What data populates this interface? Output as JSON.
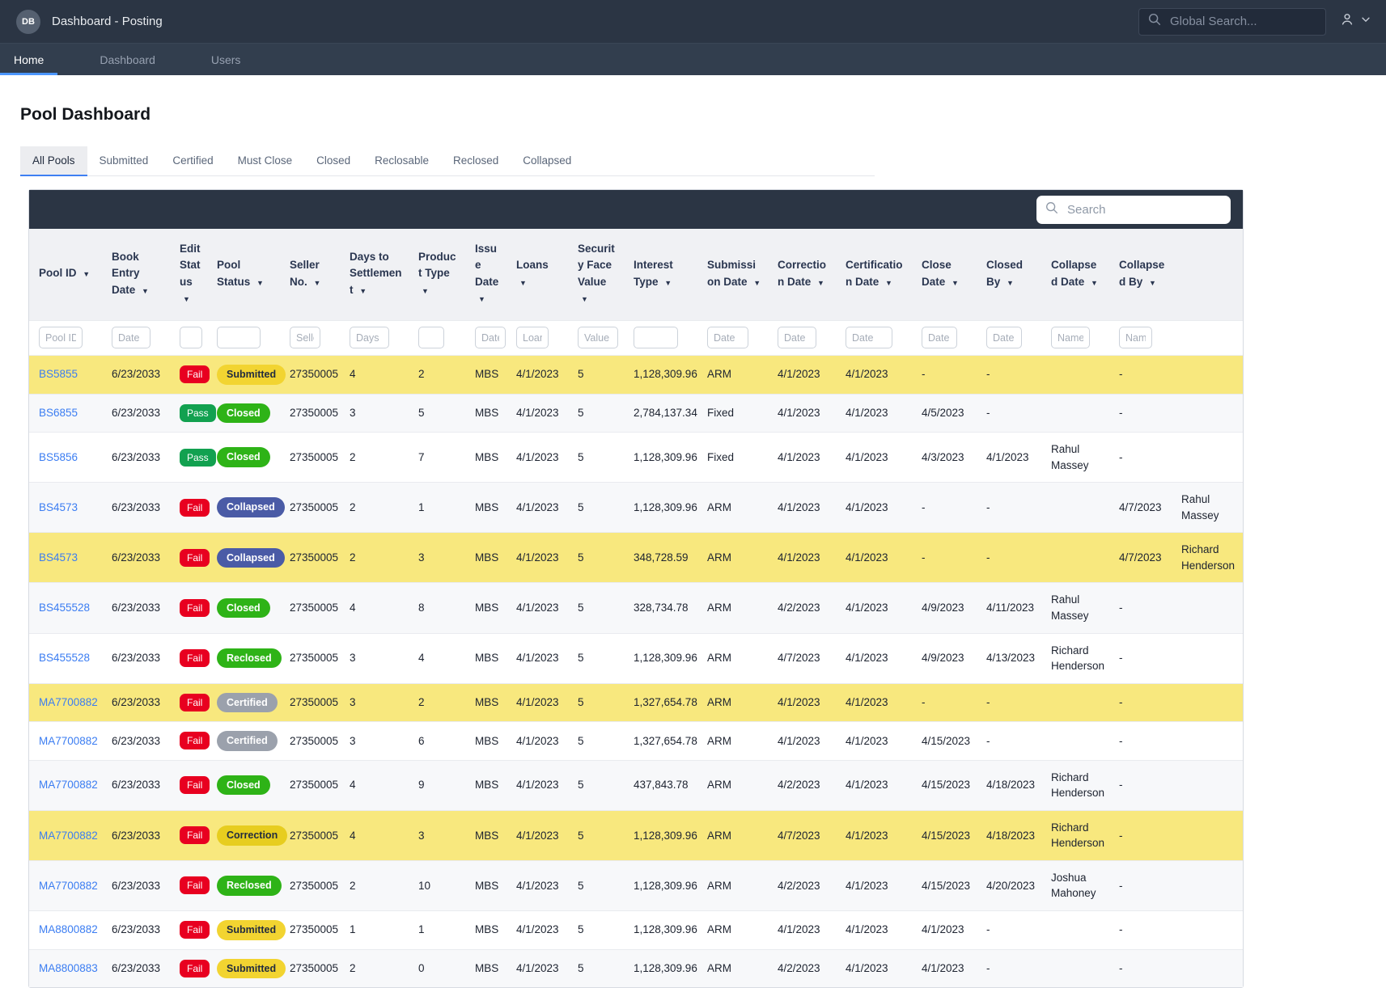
{
  "topbar": {
    "logo": "DB",
    "title": "Dashboard - Posting",
    "global_search_placeholder": "Global Search..."
  },
  "nav": {
    "items": [
      {
        "label": "Home",
        "active": true
      },
      {
        "label": "Dashboard",
        "active": false
      },
      {
        "label": "Users",
        "active": false
      }
    ]
  },
  "page": {
    "title": "Pool Dashboard"
  },
  "tabs": {
    "active": "All Pools",
    "items": [
      "All Pools",
      "Submitted",
      "Certified",
      "Must Close",
      "Closed",
      "Reclosable",
      "Reclosed",
      "Collapsed"
    ]
  },
  "table": {
    "search_placeholder": "Search",
    "columns": [
      {
        "key": "pool_id",
        "label": "Pool ID",
        "sortable": true,
        "filter_placeholder": "Pool ID"
      },
      {
        "key": "book_entry_date",
        "label": "Book Entry Date",
        "sortable": true,
        "filter_placeholder": "Date"
      },
      {
        "key": "edit_status",
        "label": "Edit Status",
        "sortable": true,
        "filter_placeholder": ""
      },
      {
        "key": "pool_status",
        "label": "Pool Status",
        "sortable": true,
        "filter_placeholder": ""
      },
      {
        "key": "seller_no",
        "label": "Seller No.",
        "sortable": true,
        "filter_placeholder": "Seller No."
      },
      {
        "key": "days_to_settlement",
        "label": "Days to Settlement",
        "sortable": true,
        "filter_placeholder": "Days"
      },
      {
        "key": "product_type",
        "label": "Product Type",
        "sortable": true,
        "filter_placeholder": ""
      },
      {
        "key": "issue_date",
        "label": "Issue Date",
        "sortable": true,
        "filter_placeholder": "Date"
      },
      {
        "key": "loans",
        "label": "Loans",
        "sortable": true,
        "filter_placeholder": "Loans"
      },
      {
        "key": "security_face_value",
        "label": "Security Face Value",
        "sortable": true,
        "filter_placeholder": "Value"
      },
      {
        "key": "interest_type",
        "label": "Interest Type",
        "sortable": true,
        "filter_placeholder": ""
      },
      {
        "key": "submission_date",
        "label": "Submission Date",
        "sortable": true,
        "filter_placeholder": "Date"
      },
      {
        "key": "correction_date",
        "label": "Correction Date",
        "sortable": true,
        "filter_placeholder": "Date"
      },
      {
        "key": "certification_date",
        "label": "Certification Date",
        "sortable": true,
        "filter_placeholder": "Date"
      },
      {
        "key": "close_date",
        "label": "Close Date",
        "sortable": true,
        "filter_placeholder": "Date"
      },
      {
        "key": "closed_by",
        "label": "Closed By",
        "sortable": true,
        "filter_placeholder": "Date"
      },
      {
        "key": "collapsed_date",
        "label": "Collapsed Date",
        "sortable": true,
        "filter_placeholder": "Name"
      },
      {
        "key": "collapsed_by",
        "label": "Collapsed By",
        "sortable": true,
        "filter_placeholder": "Name"
      },
      {
        "key": "overflow",
        "label": "",
        "sortable": false,
        "filter_placeholder": null
      }
    ],
    "rows": [
      {
        "highlight": true,
        "cells": [
          "BS5855",
          "6/23/2033",
          "Fail",
          "Submitted",
          "27350005",
          "4",
          "2",
          "MBS",
          "4/1/2023",
          "5",
          "1,128,309.96",
          "ARM",
          "4/1/2023",
          "4/1/2023",
          "-",
          "-",
          "",
          "-",
          ""
        ]
      },
      {
        "highlight": false,
        "cells": [
          "BS6855",
          "6/23/2033",
          "Pass",
          "Closed",
          "27350005",
          "3",
          "5",
          "MBS",
          "4/1/2023",
          "5",
          "2,784,137.34",
          "Fixed",
          "4/1/2023",
          "4/1/2023",
          "4/5/2023",
          "-",
          "",
          "-",
          ""
        ]
      },
      {
        "highlight": false,
        "cells": [
          "BS5856",
          "6/23/2033",
          "Pass",
          "Closed",
          "27350005",
          "2",
          "7",
          "MBS",
          "4/1/2023",
          "5",
          "1,128,309.96",
          "Fixed",
          "4/1/2023",
          "4/1/2023",
          "4/3/2023",
          "4/1/2023",
          "Rahul Massey",
          "-",
          ""
        ]
      },
      {
        "highlight": false,
        "cells": [
          "BS4573",
          "6/23/2033",
          "Fail",
          "Collapsed",
          "27350005",
          "2",
          "1",
          "MBS",
          "4/1/2023",
          "5",
          "1,128,309.96",
          "ARM",
          "4/1/2023",
          "4/1/2023",
          "-",
          "-",
          "",
          "4/7/2023",
          "Rahul Massey"
        ]
      },
      {
        "highlight": true,
        "cells": [
          "BS4573",
          "6/23/2033",
          "Fail",
          "Collapsed",
          "27350005",
          "2",
          "3",
          "MBS",
          "4/1/2023",
          "5",
          "348,728.59",
          "ARM",
          "4/1/2023",
          "4/1/2023",
          "-",
          "-",
          "",
          "4/7/2023",
          "Richard Henderson"
        ]
      },
      {
        "highlight": false,
        "cells": [
          "BS455528",
          "6/23/2033",
          "Fail",
          "Closed",
          "27350005",
          "4",
          "8",
          "MBS",
          "4/1/2023",
          "5",
          "328,734.78",
          "ARM",
          "4/2/2023",
          "4/1/2023",
          "4/9/2023",
          "4/11/2023",
          "Rahul Massey",
          "-",
          ""
        ]
      },
      {
        "highlight": false,
        "cells": [
          "BS455528",
          "6/23/2033",
          "Fail",
          "Reclosed",
          "27350005",
          "3",
          "4",
          "MBS",
          "4/1/2023",
          "5",
          "1,128,309.96",
          "ARM",
          "4/7/2023",
          "4/1/2023",
          "4/9/2023",
          "4/13/2023",
          "Richard Henderson",
          "-",
          ""
        ]
      },
      {
        "highlight": true,
        "cells": [
          "MA7700882",
          "6/23/2033",
          "Fail",
          "Certified",
          "27350005",
          "3",
          "2",
          "MBS",
          "4/1/2023",
          "5",
          "1,327,654.78",
          "ARM",
          "4/1/2023",
          "4/1/2023",
          "-",
          "-",
          "",
          "-",
          ""
        ]
      },
      {
        "highlight": false,
        "cells": [
          "MA7700882",
          "6/23/2033",
          "Fail",
          "Certified",
          "27350005",
          "3",
          "6",
          "MBS",
          "4/1/2023",
          "5",
          "1,327,654.78",
          "ARM",
          "4/1/2023",
          "4/1/2023",
          "4/15/2023",
          "-",
          "",
          "-",
          ""
        ]
      },
      {
        "highlight": false,
        "cells": [
          "MA7700882",
          "6/23/2033",
          "Fail",
          "Closed",
          "27350005",
          "4",
          "9",
          "MBS",
          "4/1/2023",
          "5",
          "437,843.78",
          "ARM",
          "4/2/2023",
          "4/1/2023",
          "4/15/2023",
          "4/18/2023",
          "Richard Henderson",
          "-",
          ""
        ]
      },
      {
        "highlight": true,
        "cells": [
          "MA7700882",
          "6/23/2033",
          "Fail",
          "Correction",
          "27350005",
          "4",
          "3",
          "MBS",
          "4/1/2023",
          "5",
          "1,128,309.96",
          "ARM",
          "4/7/2023",
          "4/1/2023",
          "4/15/2023",
          "4/18/2023",
          "Richard Henderson",
          "-",
          ""
        ]
      },
      {
        "highlight": false,
        "cells": [
          "MA7700882",
          "6/23/2033",
          "Fail",
          "Reclosed",
          "27350005",
          "2",
          "10",
          "MBS",
          "4/1/2023",
          "5",
          "1,128,309.96",
          "ARM",
          "4/2/2023",
          "4/1/2023",
          "4/15/2023",
          "4/20/2023",
          "Joshua Mahoney",
          "-",
          ""
        ]
      },
      {
        "highlight": false,
        "cells": [
          "MA8800882",
          "6/23/2033",
          "Fail",
          "Submitted",
          "27350005",
          "1",
          "1",
          "MBS",
          "4/1/2023",
          "5",
          "1,128,309.96",
          "ARM",
          "4/1/2023",
          "4/1/2023",
          "4/1/2023",
          "-",
          "",
          "-",
          ""
        ]
      },
      {
        "highlight": false,
        "cells": [
          "MA8800883",
          "6/23/2033",
          "Fail",
          "Submitted",
          "27350005",
          "2",
          "0",
          "MBS",
          "4/1/2023",
          "5",
          "1,128,309.96",
          "ARM",
          "4/2/2023",
          "4/1/2023",
          "4/1/2023",
          "-",
          "",
          "-",
          ""
        ]
      }
    ]
  },
  "colors": {
    "accent": "#3e7ff2",
    "link": "#3b7df2",
    "row_highlight": "#f8e87e",
    "edit_status": {
      "Fail": "#e80020",
      "Pass": "#12a150"
    },
    "pool_status": {
      "Submitted": {
        "bg": "#f2d431",
        "fg": "#222c3f"
      },
      "Closed": {
        "bg": "#2eb317",
        "fg": "#ffffff"
      },
      "Collapsed": {
        "bg": "#4a5ba6",
        "fg": "#ffffff"
      },
      "Certified": {
        "bg": "#9ba1ac",
        "fg": "#ffffff"
      },
      "Correction": {
        "bg": "#e7cd1f",
        "fg": "#222c3f"
      },
      "Reclosed": {
        "bg": "#2eb317",
        "fg": "#ffffff"
      }
    }
  }
}
